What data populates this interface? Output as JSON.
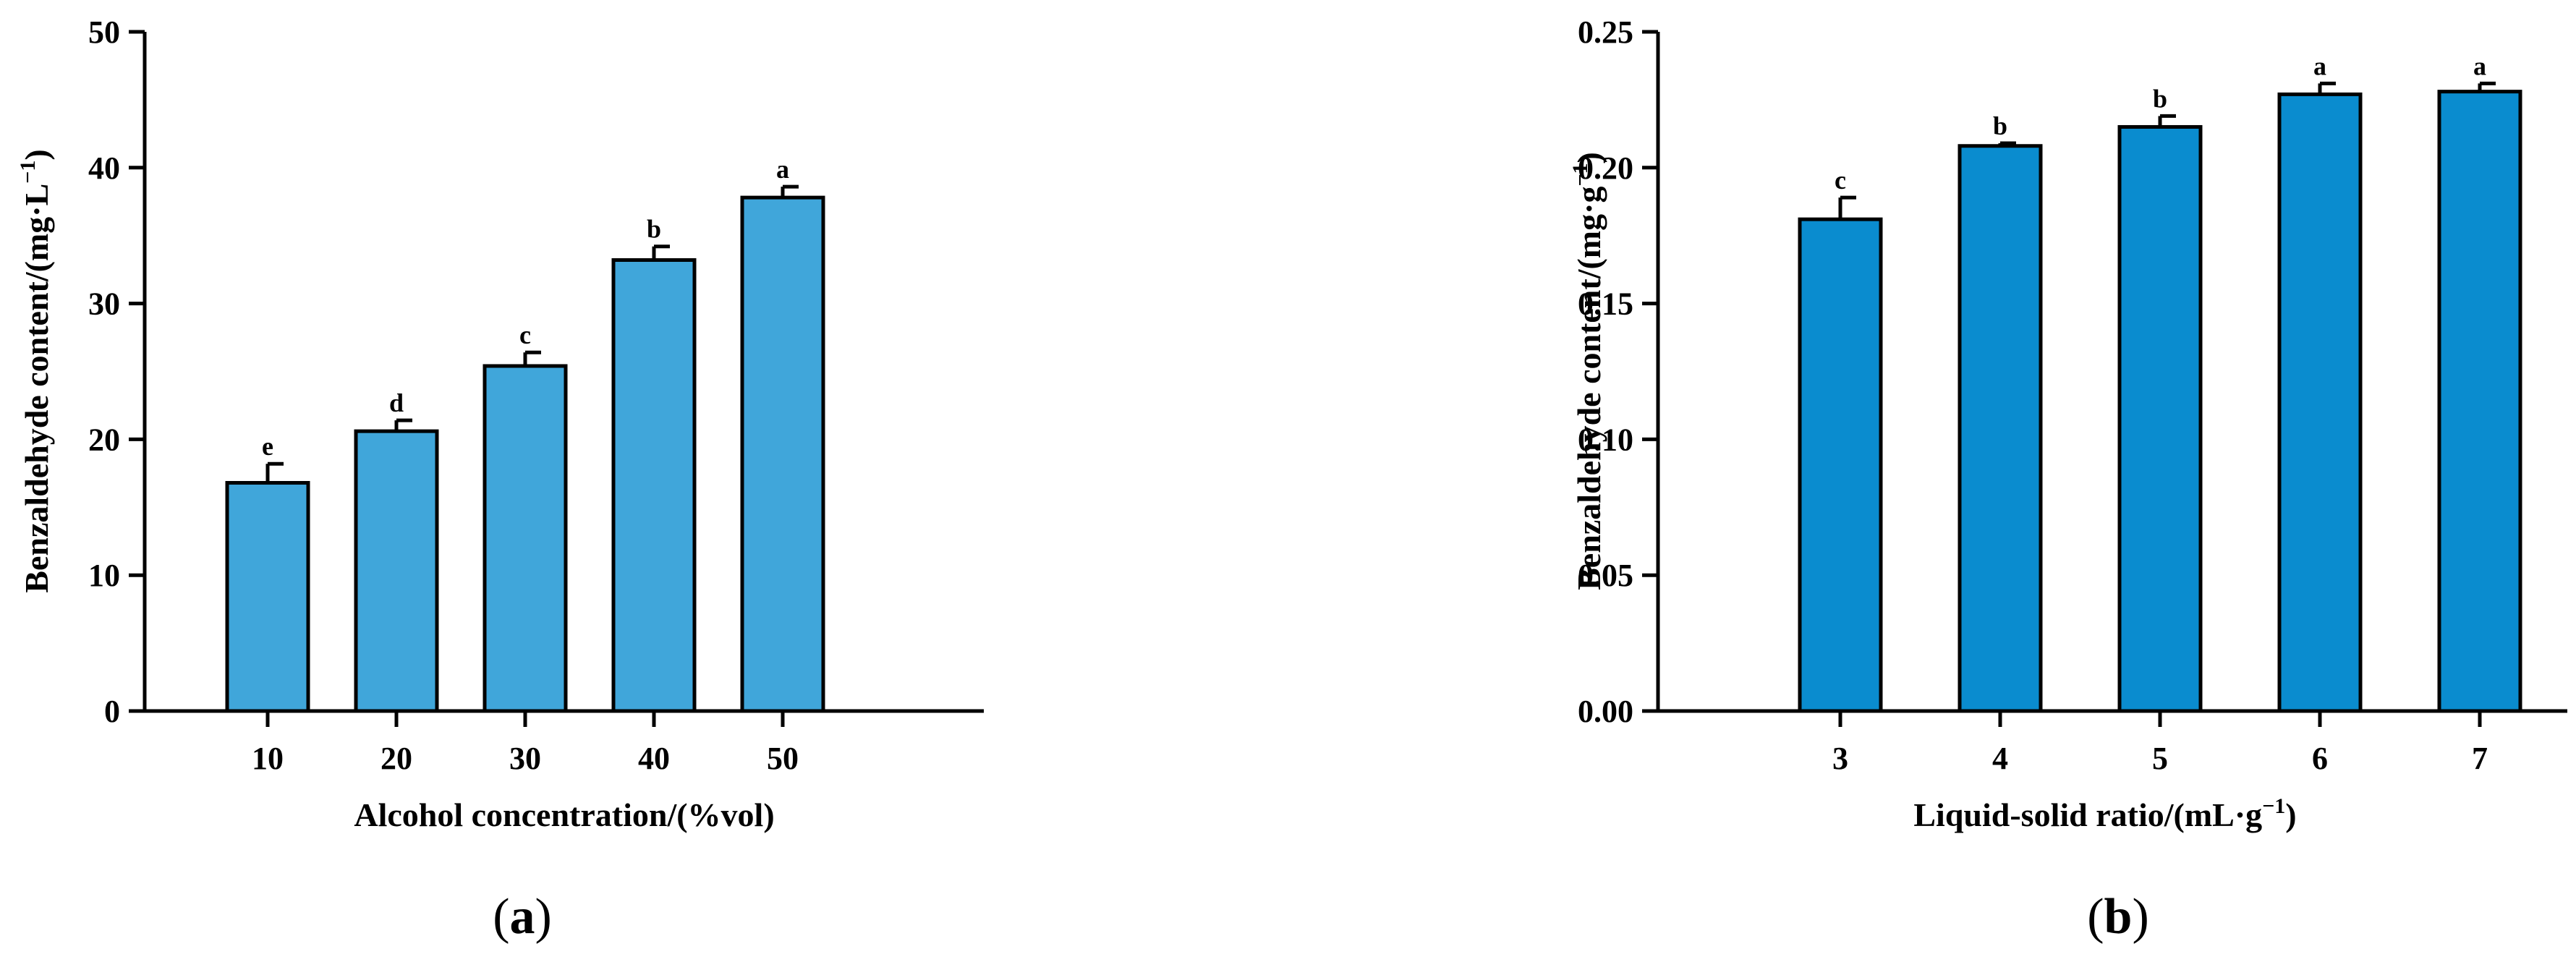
{
  "chart_data": [
    {
      "type": "bar",
      "panel_label": {
        "open": "(",
        "letter": "a",
        "close": ")"
      },
      "xlabel": "Alcohol concentration/(%vol)",
      "ylabel": {
        "main": "Benzaldehyde content/(mg·L",
        "sup": "−1",
        "close": ")"
      },
      "categories": [
        "10",
        "20",
        "30",
        "40",
        "50"
      ],
      "values": [
        16.8,
        20.6,
        25.4,
        33.2,
        37.8
      ],
      "errors": [
        1.4,
        0.8,
        1.0,
        1.0,
        0.8
      ],
      "significance": [
        "e",
        "d",
        "c",
        "b",
        "a"
      ],
      "ylim": [
        0,
        50
      ],
      "yticks": [
        "0",
        "10",
        "20",
        "30",
        "40",
        "50"
      ],
      "bar_color": "#40a6da",
      "grid": false
    },
    {
      "type": "bar",
      "panel_label": {
        "open": "(",
        "letter": "b",
        "close": ")"
      },
      "xlabel": {
        "main": "Liquid-solid ratio/(mL·g",
        "sup": "−1",
        "close": ")"
      },
      "ylabel": {
        "main": "Benzaldehyde content/(mg·g",
        "sup": "−1",
        "close": ")"
      },
      "categories": [
        "3",
        "4",
        "5",
        "6",
        "7"
      ],
      "values": [
        0.181,
        0.208,
        0.215,
        0.227,
        0.228
      ],
      "errors": [
        0.008,
        0.001,
        0.004,
        0.004,
        0.003
      ],
      "significance": [
        "c",
        "b",
        "b",
        "a",
        "a"
      ],
      "ylim": [
        0,
        0.25
      ],
      "yticks": [
        "0.00",
        "0.05",
        "0.10",
        "0.15",
        "0.20",
        "0.25"
      ],
      "bar_color": "#0a8ccf",
      "grid": false
    }
  ]
}
